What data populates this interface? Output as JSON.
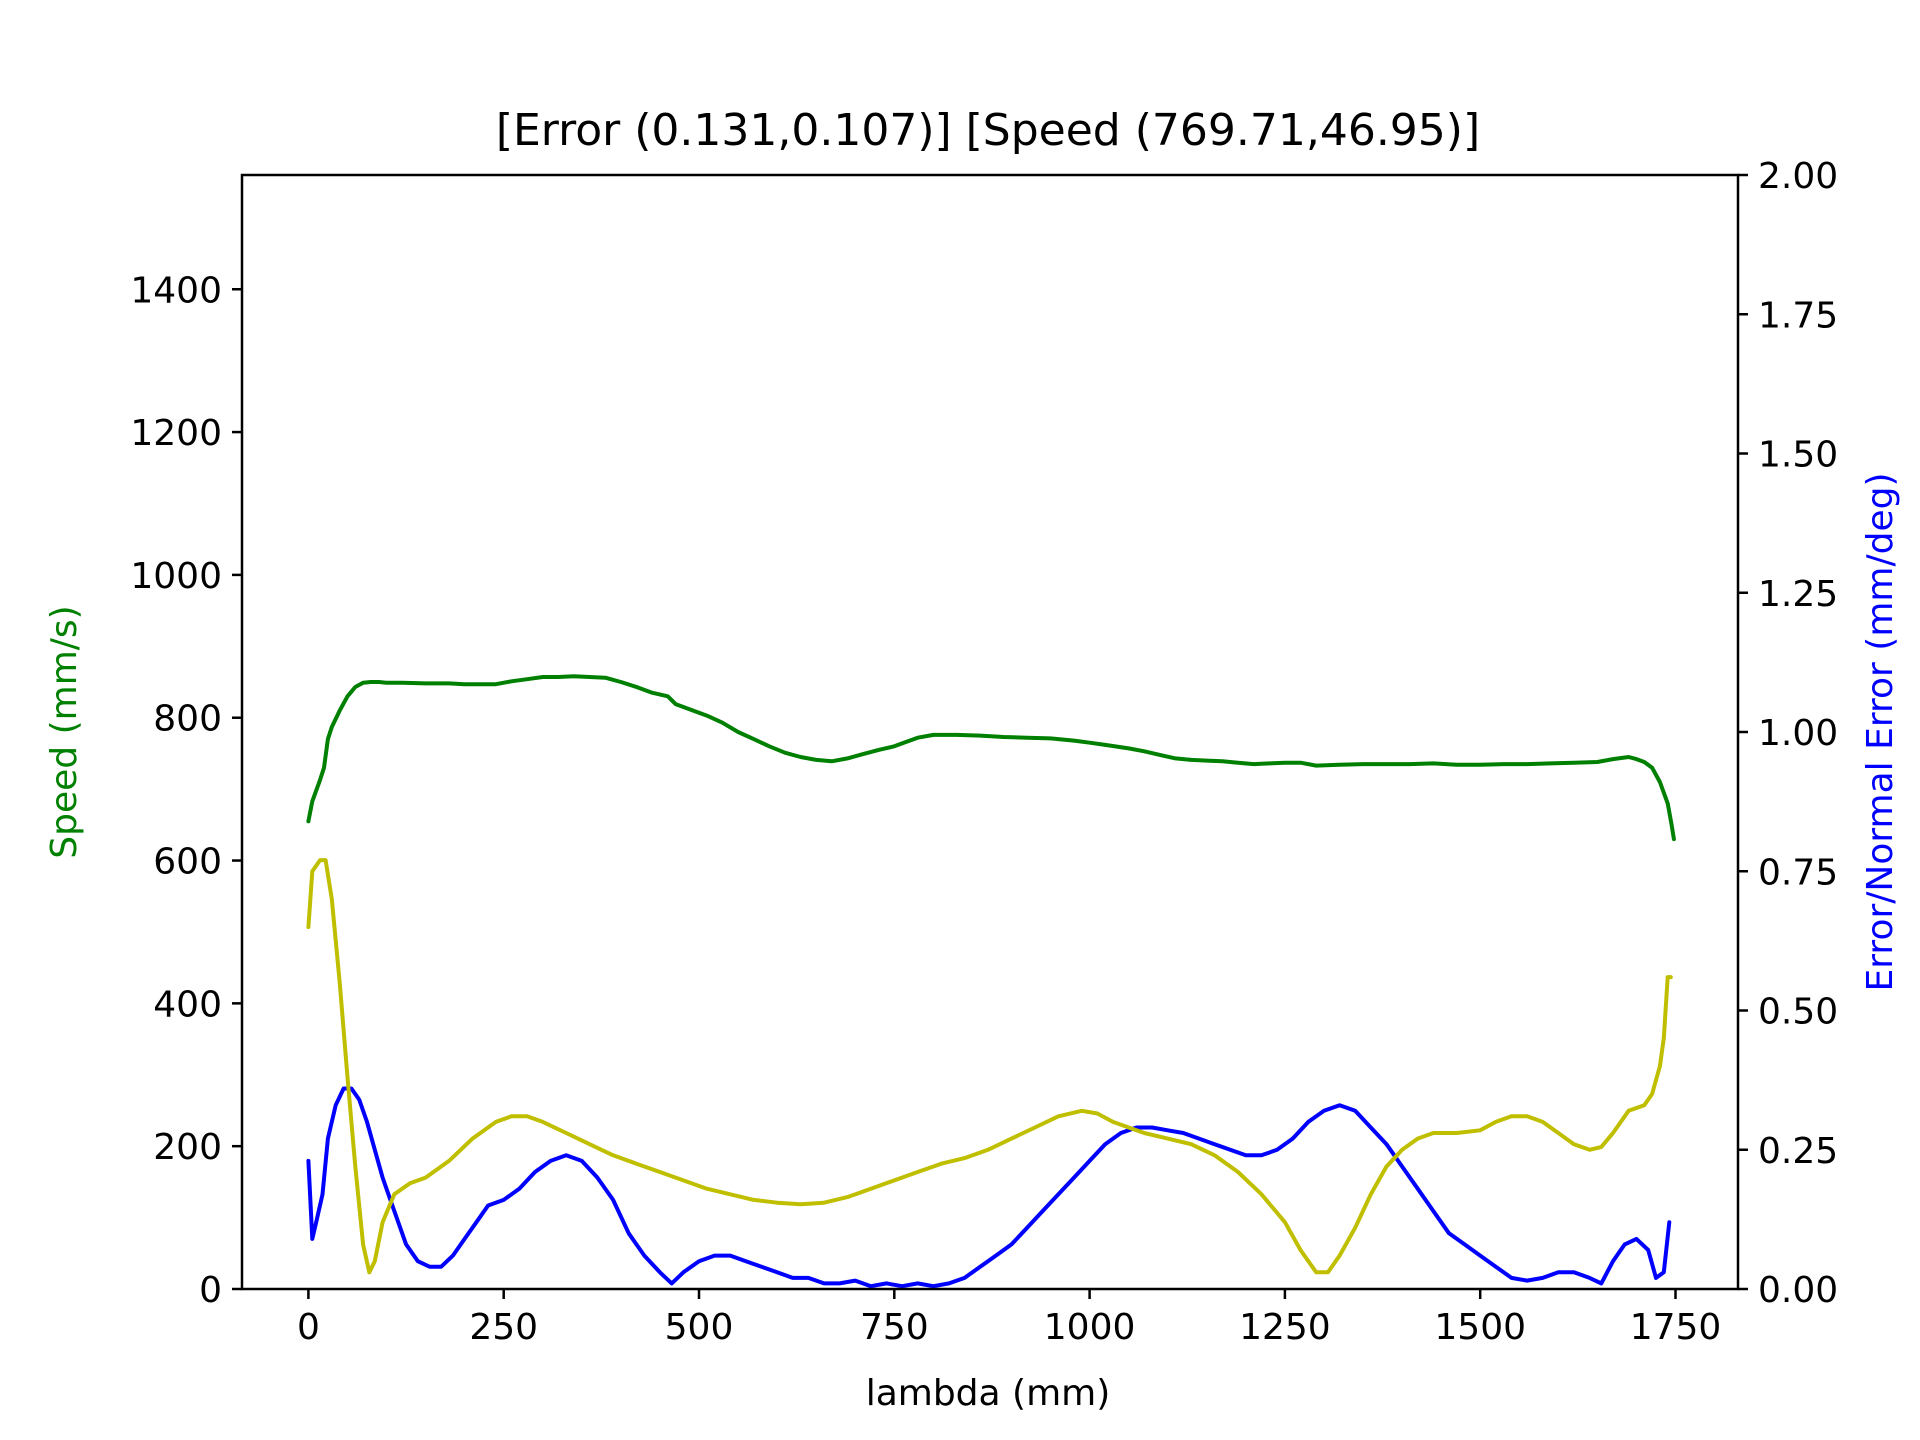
{
  "chart_data": {
    "type": "line",
    "title": "[Error (0.131,0.107)] [Speed (769.71,46.95)]",
    "xlabel": "lambda (mm)",
    "ylabel_left": "Speed (mm/s)",
    "ylabel_right": "Error/Normal Error (mm/deg)",
    "xlim": [
      -85,
      1830
    ],
    "ylim_left": [
      0,
      1560
    ],
    "ylim_right": [
      0,
      2.0
    ],
    "x_ticks": [
      "0",
      "250",
      "500",
      "750",
      "1000",
      "1250",
      "1500",
      "1750"
    ],
    "y_ticks_left": [
      "0",
      "200",
      "400",
      "600",
      "800",
      "1000",
      "1200",
      "1400"
    ],
    "y_ticks_right": [
      "0.00",
      "0.25",
      "0.50",
      "0.75",
      "1.00",
      "1.25",
      "1.50",
      "1.75",
      "2.00"
    ],
    "grid": false,
    "colors": {
      "speed": "#008000",
      "error": "#0000ff",
      "normal_error": "#bfbf00",
      "left_label": "#008000",
      "right_label": "#0000ff"
    },
    "series": [
      {
        "axis": "left",
        "color": "#008000",
        "points": [
          [
            0,
            655
          ],
          [
            5,
            683
          ],
          [
            10,
            698
          ],
          [
            15,
            713
          ],
          [
            20,
            730
          ],
          [
            25,
            770
          ],
          [
            30,
            787
          ],
          [
            40,
            810
          ],
          [
            50,
            830
          ],
          [
            60,
            843
          ],
          [
            70,
            849
          ],
          [
            80,
            850
          ],
          [
            90,
            850
          ],
          [
            100,
            849
          ],
          [
            120,
            849
          ],
          [
            150,
            848
          ],
          [
            180,
            848
          ],
          [
            200,
            847
          ],
          [
            220,
            847
          ],
          [
            240,
            847
          ],
          [
            260,
            851
          ],
          [
            280,
            854
          ],
          [
            300,
            857
          ],
          [
            320,
            857
          ],
          [
            340,
            858
          ],
          [
            360,
            857
          ],
          [
            380,
            856
          ],
          [
            400,
            850
          ],
          [
            420,
            843
          ],
          [
            440,
            835
          ],
          [
            460,
            830
          ],
          [
            470,
            819
          ],
          [
            490,
            811
          ],
          [
            510,
            803
          ],
          [
            530,
            793
          ],
          [
            550,
            780
          ],
          [
            570,
            770
          ],
          [
            590,
            760
          ],
          [
            610,
            751
          ],
          [
            630,
            745
          ],
          [
            650,
            741
          ],
          [
            670,
            739
          ],
          [
            690,
            743
          ],
          [
            710,
            749
          ],
          [
            730,
            755
          ],
          [
            750,
            760
          ],
          [
            760,
            764
          ],
          [
            780,
            772
          ],
          [
            800,
            776
          ],
          [
            830,
            776
          ],
          [
            860,
            775
          ],
          [
            890,
            773
          ],
          [
            920,
            772
          ],
          [
            950,
            771
          ],
          [
            980,
            768
          ],
          [
            1000,
            765
          ],
          [
            1020,
            762
          ],
          [
            1050,
            757
          ],
          [
            1070,
            753
          ],
          [
            1090,
            748
          ],
          [
            1110,
            743
          ],
          [
            1130,
            741
          ],
          [
            1150,
            740
          ],
          [
            1170,
            739
          ],
          [
            1190,
            737
          ],
          [
            1210,
            735
          ],
          [
            1230,
            736
          ],
          [
            1250,
            737
          ],
          [
            1270,
            737
          ],
          [
            1290,
            733
          ],
          [
            1320,
            734
          ],
          [
            1350,
            735
          ],
          [
            1380,
            735
          ],
          [
            1410,
            735
          ],
          [
            1440,
            736
          ],
          [
            1470,
            734
          ],
          [
            1500,
            734
          ],
          [
            1530,
            735
          ],
          [
            1560,
            735
          ],
          [
            1590,
            736
          ],
          [
            1620,
            737
          ],
          [
            1650,
            738
          ],
          [
            1670,
            742
          ],
          [
            1690,
            745
          ],
          [
            1700,
            742
          ],
          [
            1710,
            738
          ],
          [
            1720,
            730
          ],
          [
            1730,
            710
          ],
          [
            1740,
            680
          ],
          [
            1745,
            650
          ],
          [
            1748,
            630
          ]
        ]
      },
      {
        "axis": "right",
        "color": "#0000ff",
        "points": [
          [
            0,
            0.23
          ],
          [
            5,
            0.09
          ],
          [
            10,
            0.12
          ],
          [
            18,
            0.17
          ],
          [
            25,
            0.27
          ],
          [
            35,
            0.33
          ],
          [
            45,
            0.36
          ],
          [
            55,
            0.36
          ],
          [
            65,
            0.34
          ],
          [
            75,
            0.3
          ],
          [
            85,
            0.25
          ],
          [
            95,
            0.2
          ],
          [
            110,
            0.14
          ],
          [
            125,
            0.08
          ],
          [
            140,
            0.05
          ],
          [
            155,
            0.04
          ],
          [
            170,
            0.04
          ],
          [
            185,
            0.06
          ],
          [
            200,
            0.09
          ],
          [
            215,
            0.12
          ],
          [
            230,
            0.15
          ],
          [
            250,
            0.16
          ],
          [
            270,
            0.18
          ],
          [
            290,
            0.21
          ],
          [
            310,
            0.23
          ],
          [
            330,
            0.24
          ],
          [
            350,
            0.23
          ],
          [
            370,
            0.2
          ],
          [
            390,
            0.16
          ],
          [
            410,
            0.1
          ],
          [
            430,
            0.06
          ],
          [
            450,
            0.03
          ],
          [
            465,
            0.01
          ],
          [
            480,
            0.03
          ],
          [
            500,
            0.05
          ],
          [
            520,
            0.06
          ],
          [
            540,
            0.06
          ],
          [
            560,
            0.05
          ],
          [
            580,
            0.04
          ],
          [
            600,
            0.03
          ],
          [
            620,
            0.02
          ],
          [
            640,
            0.02
          ],
          [
            660,
            0.01
          ],
          [
            680,
            0.01
          ],
          [
            700,
            0.015
          ],
          [
            720,
            0.005
          ],
          [
            740,
            0.01
          ],
          [
            760,
            0.005
          ],
          [
            780,
            0.01
          ],
          [
            800,
            0.005
          ],
          [
            820,
            0.01
          ],
          [
            840,
            0.02
          ],
          [
            860,
            0.04
          ],
          [
            880,
            0.06
          ],
          [
            900,
            0.08
          ],
          [
            920,
            0.11
          ],
          [
            940,
            0.14
          ],
          [
            960,
            0.17
          ],
          [
            980,
            0.2
          ],
          [
            1000,
            0.23
          ],
          [
            1020,
            0.26
          ],
          [
            1040,
            0.28
          ],
          [
            1060,
            0.29
          ],
          [
            1080,
            0.29
          ],
          [
            1100,
            0.285
          ],
          [
            1120,
            0.28
          ],
          [
            1140,
            0.27
          ],
          [
            1160,
            0.26
          ],
          [
            1180,
            0.25
          ],
          [
            1200,
            0.24
          ],
          [
            1220,
            0.24
          ],
          [
            1240,
            0.25
          ],
          [
            1260,
            0.27
          ],
          [
            1280,
            0.3
          ],
          [
            1300,
            0.32
          ],
          [
            1320,
            0.33
          ],
          [
            1340,
            0.32
          ],
          [
            1360,
            0.29
          ],
          [
            1380,
            0.26
          ],
          [
            1400,
            0.22
          ],
          [
            1420,
            0.18
          ],
          [
            1440,
            0.14
          ],
          [
            1460,
            0.1
          ],
          [
            1480,
            0.08
          ],
          [
            1500,
            0.06
          ],
          [
            1520,
            0.04
          ],
          [
            1540,
            0.02
          ],
          [
            1560,
            0.015
          ],
          [
            1580,
            0.02
          ],
          [
            1600,
            0.03
          ],
          [
            1620,
            0.03
          ],
          [
            1640,
            0.02
          ],
          [
            1655,
            0.01
          ],
          [
            1670,
            0.05
          ],
          [
            1685,
            0.08
          ],
          [
            1700,
            0.09
          ],
          [
            1715,
            0.07
          ],
          [
            1725,
            0.02
          ],
          [
            1735,
            0.03
          ],
          [
            1742,
            0.12
          ]
        ]
      },
      {
        "axis": "right",
        "color": "#bfbf00",
        "points": [
          [
            0,
            0.65
          ],
          [
            5,
            0.75
          ],
          [
            15,
            0.77
          ],
          [
            22,
            0.77
          ],
          [
            30,
            0.7
          ],
          [
            40,
            0.55
          ],
          [
            50,
            0.38
          ],
          [
            60,
            0.22
          ],
          [
            70,
            0.08
          ],
          [
            78,
            0.03
          ],
          [
            85,
            0.05
          ],
          [
            95,
            0.12
          ],
          [
            110,
            0.17
          ],
          [
            130,
            0.19
          ],
          [
            150,
            0.2
          ],
          [
            180,
            0.23
          ],
          [
            210,
            0.27
          ],
          [
            240,
            0.3
          ],
          [
            260,
            0.31
          ],
          [
            280,
            0.31
          ],
          [
            300,
            0.3
          ],
          [
            330,
            0.28
          ],
          [
            360,
            0.26
          ],
          [
            390,
            0.24
          ],
          [
            420,
            0.225
          ],
          [
            450,
            0.21
          ],
          [
            480,
            0.195
          ],
          [
            510,
            0.18
          ],
          [
            540,
            0.17
          ],
          [
            570,
            0.16
          ],
          [
            600,
            0.155
          ],
          [
            630,
            0.152
          ],
          [
            660,
            0.155
          ],
          [
            690,
            0.165
          ],
          [
            720,
            0.18
          ],
          [
            750,
            0.195
          ],
          [
            780,
            0.21
          ],
          [
            810,
            0.225
          ],
          [
            840,
            0.235
          ],
          [
            870,
            0.25
          ],
          [
            900,
            0.27
          ],
          [
            930,
            0.29
          ],
          [
            960,
            0.31
          ],
          [
            990,
            0.32
          ],
          [
            1010,
            0.315
          ],
          [
            1030,
            0.3
          ],
          [
            1050,
            0.29
          ],
          [
            1070,
            0.28
          ],
          [
            1100,
            0.27
          ],
          [
            1130,
            0.26
          ],
          [
            1160,
            0.24
          ],
          [
            1190,
            0.21
          ],
          [
            1220,
            0.17
          ],
          [
            1250,
            0.12
          ],
          [
            1270,
            0.07
          ],
          [
            1290,
            0.03
          ],
          [
            1305,
            0.03
          ],
          [
            1320,
            0.06
          ],
          [
            1340,
            0.11
          ],
          [
            1360,
            0.17
          ],
          [
            1380,
            0.22
          ],
          [
            1400,
            0.25
          ],
          [
            1420,
            0.27
          ],
          [
            1440,
            0.28
          ],
          [
            1470,
            0.28
          ],
          [
            1500,
            0.285
          ],
          [
            1520,
            0.3
          ],
          [
            1540,
            0.31
          ],
          [
            1560,
            0.31
          ],
          [
            1580,
            0.3
          ],
          [
            1600,
            0.28
          ],
          [
            1620,
            0.26
          ],
          [
            1640,
            0.25
          ],
          [
            1655,
            0.255
          ],
          [
            1670,
            0.28
          ],
          [
            1690,
            0.32
          ],
          [
            1710,
            0.33
          ],
          [
            1720,
            0.35
          ],
          [
            1730,
            0.4
          ],
          [
            1735,
            0.45
          ],
          [
            1740,
            0.56
          ],
          [
            1744,
            0.56
          ]
        ]
      }
    ]
  }
}
